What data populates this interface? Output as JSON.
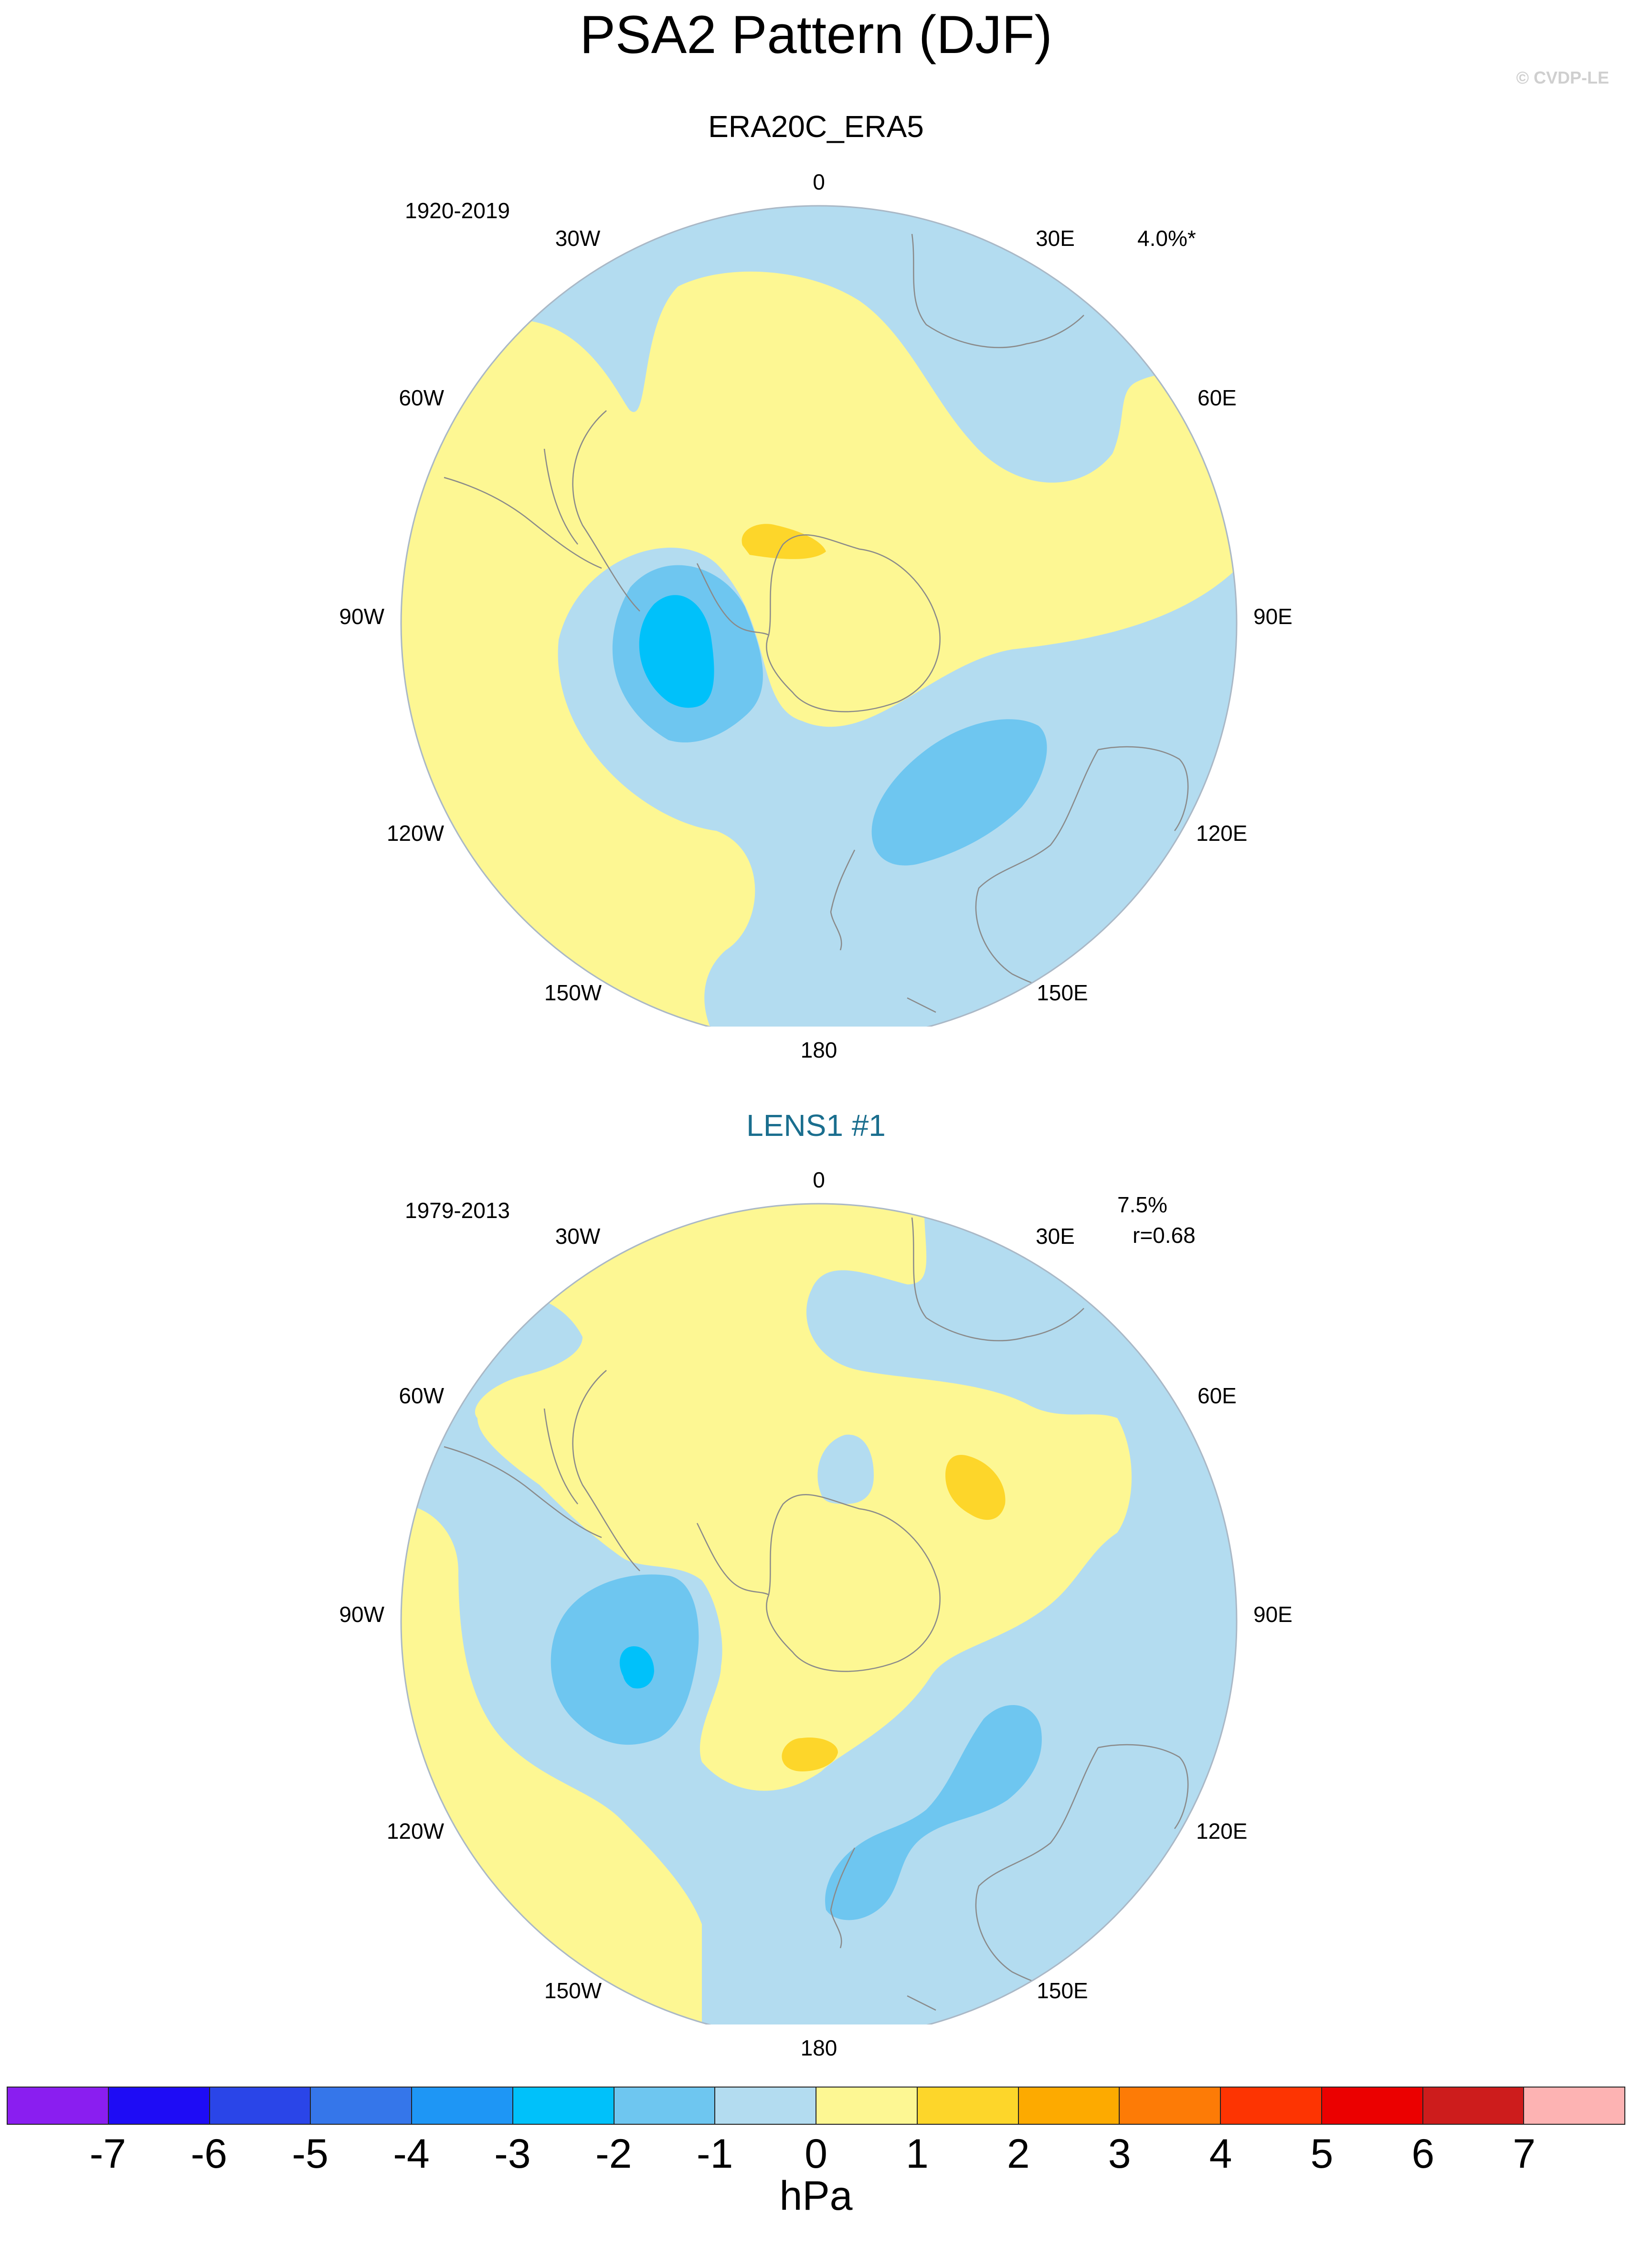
{
  "title": "PSA2 Pattern (DJF)",
  "copyright": "© CVDP-LE",
  "panels": [
    {
      "title": "ERA20C_ERA5",
      "years": "1920-2019",
      "stat1": "4.0%*",
      "stat2": "",
      "lon_labels": {
        "top": "0",
        "tr1": "30E",
        "tr2": "60E",
        "right": "90E",
        "br2": "120E",
        "br1": "150E",
        "bottom": "180",
        "bl1": "150W",
        "bl2": "120W",
        "left": "90W",
        "tl2": "60W",
        "tl1": "30W"
      }
    },
    {
      "title": "LENS1 #1",
      "years": "1979-2013",
      "stat1": "7.5%",
      "stat2": "r=0.68",
      "lon_labels": {
        "top": "0",
        "tr1": "30E",
        "tr2": "60E",
        "right": "90E",
        "br2": "120E",
        "br1": "150E",
        "bottom": "180",
        "bl1": "150W",
        "bl2": "120W",
        "left": "90W",
        "tl2": "60W",
        "tl1": "30W"
      }
    }
  ],
  "colorbar": {
    "units": "hPa",
    "levels": [
      "-7",
      "-6",
      "-5",
      "-4",
      "-3",
      "-2",
      "-1",
      "0",
      "1",
      "2",
      "3",
      "4",
      "5",
      "6",
      "7"
    ],
    "colors": [
      "#8a1ef0",
      "#1e0cf5",
      "#2a45e8",
      "#3576ea",
      "#1e96f5",
      "#00c1fa",
      "#6ec6f0",
      "#b3dcf0",
      "#fdf793",
      "#fdd62a",
      "#fdaa00",
      "#fd7b06",
      "#fd3402",
      "#eb0000",
      "#cd1c1c",
      "#fdb3b3"
    ]
  }
}
